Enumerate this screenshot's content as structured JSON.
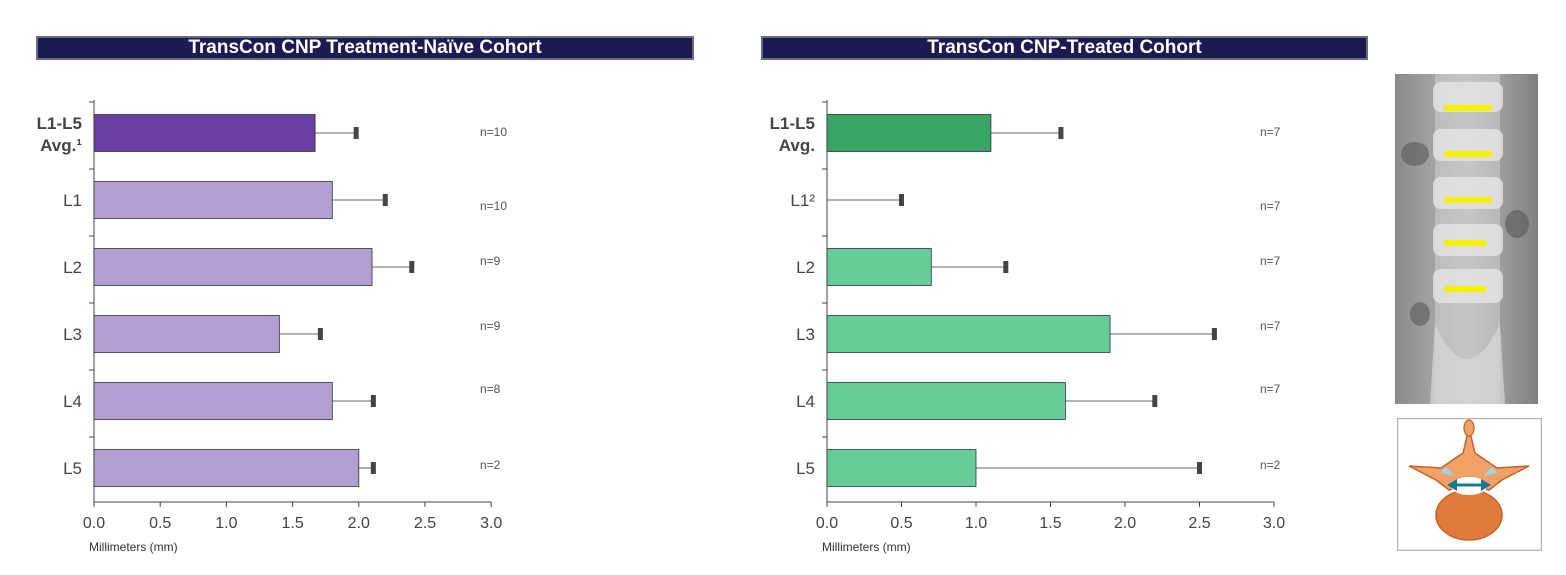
{
  "colors": {
    "title_bg": "#1c1a52",
    "naive_avg": "#6a3fa3",
    "naive_bar": "#b09fd0",
    "treated_avg": "#38a466",
    "treated_bar": "#66cc99",
    "spine_highlight": "#f5f200"
  },
  "chart_data": [
    {
      "type": "bar",
      "orientation": "horizontal",
      "title": "TransCon CNP Treatment-Naïve Cohort",
      "xlabel": "Millimeters (mm)",
      "xlim": [
        0,
        3.0
      ],
      "xticks": [
        "0.0",
        "0.5",
        "1.0",
        "1.5",
        "2.0",
        "2.5",
        "3.0"
      ],
      "categories": [
        {
          "line1": "L1-L5",
          "line2": "Avg.¹",
          "bold": true
        },
        {
          "line1": "L1",
          "line2": "",
          "bold": false
        },
        {
          "line1": "L2",
          "line2": "",
          "bold": false
        },
        {
          "line1": "L3",
          "line2": "",
          "bold": false
        },
        {
          "line1": "L4",
          "line2": "",
          "bold": false
        },
        {
          "line1": "L5",
          "line2": "",
          "bold": false
        }
      ],
      "values": [
        1.67,
        1.8,
        2.1,
        1.4,
        1.8,
        2.0
      ],
      "error_upper": [
        1.98,
        2.2,
        2.4,
        1.71,
        2.11,
        2.11
      ],
      "n_labels": [
        "n=10",
        "n=10",
        "n=9",
        "n=9",
        "n=8",
        "n=2"
      ]
    },
    {
      "type": "bar",
      "orientation": "horizontal",
      "title": "TransCon CNP-Treated Cohort",
      "xlabel": "Millimeters (mm)",
      "xlim": [
        0,
        3.0
      ],
      "xticks": [
        "0.0",
        "0.5",
        "1.0",
        "1.5",
        "2.0",
        "2.5",
        "3.0"
      ],
      "categories": [
        {
          "line1": "L1-L5",
          "line2": "Avg.",
          "bold": true
        },
        {
          "line1": "L1²",
          "line2": "",
          "bold": false
        },
        {
          "line1": "L2",
          "line2": "",
          "bold": false
        },
        {
          "line1": "L3",
          "line2": "",
          "bold": false
        },
        {
          "line1": "L4",
          "line2": "",
          "bold": false
        },
        {
          "line1": "L5",
          "line2": "",
          "bold": false
        }
      ],
      "values": [
        1.1,
        0.0,
        0.7,
        1.9,
        1.6,
        1.0
      ],
      "error_upper": [
        1.57,
        0.5,
        1.2,
        2.6,
        2.2,
        2.5
      ],
      "n_labels": [
        "n=7",
        "n=7",
        "n=7",
        "n=7",
        "n=7",
        "n=2"
      ]
    }
  ]
}
